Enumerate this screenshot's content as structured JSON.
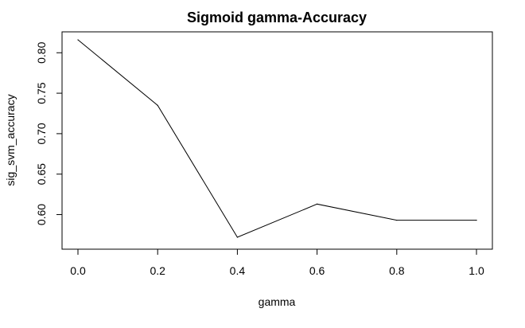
{
  "chart_data": {
    "type": "line",
    "title": "Sigmoid gamma-Accuracy",
    "xlabel": "gamma",
    "ylabel": "sig_svm_accuracy",
    "x": [
      0.0,
      0.2,
      0.4,
      0.6,
      0.8,
      1.0
    ],
    "series": [
      {
        "values": [
          0.816,
          0.735,
          0.572,
          0.613,
          0.593,
          0.593
        ]
      }
    ],
    "xlim": [
      0.0,
      1.0
    ],
    "ylim": [
      0.572,
      0.816
    ],
    "x_ticks": [
      "0.0",
      "0.2",
      "0.4",
      "0.6",
      "0.8",
      "1.0"
    ],
    "y_ticks": [
      "0.60",
      "0.65",
      "0.70",
      "0.75",
      "0.80"
    ],
    "grid": false,
    "line_color": "#000000",
    "box_color": "#000000"
  }
}
